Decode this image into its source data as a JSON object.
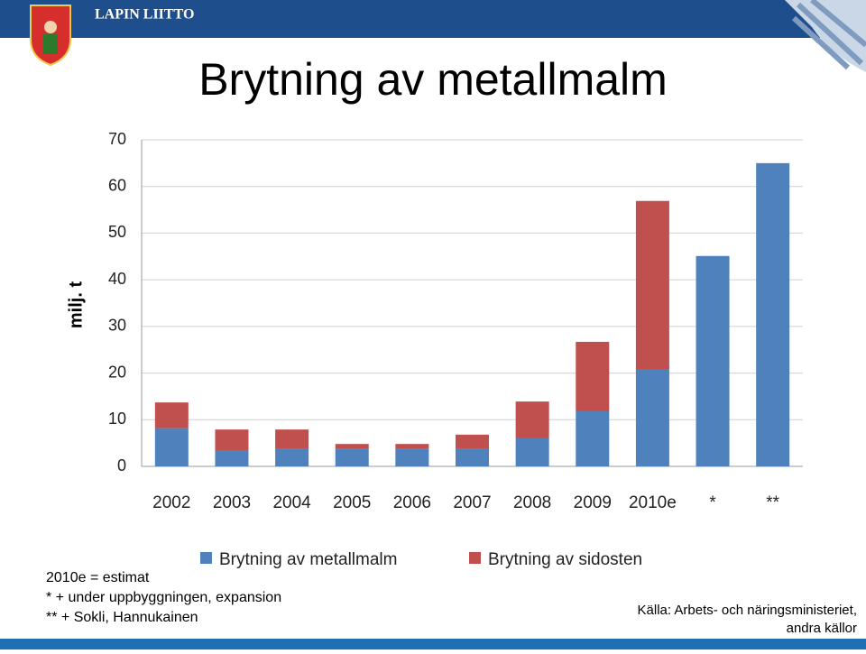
{
  "header": {
    "org": "LAPIN LIITTO"
  },
  "chart_data": {
    "type": "bar",
    "stacked": true,
    "title": "Brytning av metallmalm",
    "y_label": "milj. t",
    "categories": [
      "2002",
      "2003",
      "2004",
      "2005",
      "2006",
      "2007",
      "2008",
      "2009",
      "2010e",
      "*",
      "**"
    ],
    "series": [
      {
        "name": "Brytning av metallmalm",
        "color": "#4f81bd",
        "values": [
          8.2,
          3.3,
          3.7,
          3.7,
          3.7,
          3.7,
          6.0,
          11.8,
          20.7,
          45.1,
          65.0
        ]
      },
      {
        "name": "Brytning av sidosten",
        "color": "#c0504d",
        "values": [
          5.5,
          4.6,
          4.2,
          1.1,
          1.1,
          3.1,
          7.9,
          14.9,
          36.2,
          null,
          null
        ]
      }
    ],
    "ylim": [
      0,
      70
    ],
    "yticks": [
      0,
      10,
      20,
      30,
      40,
      50,
      60,
      70
    ],
    "grid": true
  },
  "notes": [
    "2010e = estimat",
    "* + under  uppbyggningen, expansion",
    "** + Sokli, Hannukainen"
  ],
  "source": [
    "Källa: Arbets- och  näringsministeriet,",
    "andra källor"
  ]
}
